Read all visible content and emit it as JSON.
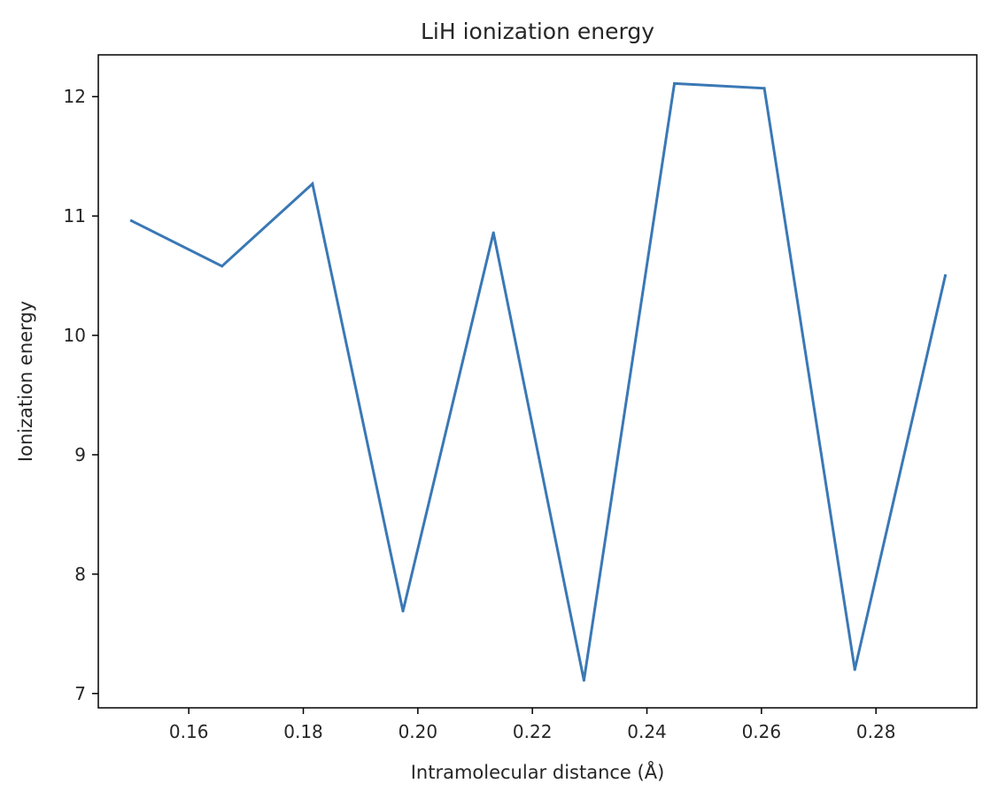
{
  "chart_data": {
    "type": "line",
    "title": "LiH ionization energy",
    "xlabel": "Intramolecular distance (Å)",
    "ylabel": "Ionization energy",
    "xlim": [
      0.1442,
      0.2976
    ],
    "ylim": [
      6.88,
      12.35
    ],
    "grid": false,
    "x_ticks": [
      "0.16",
      "0.18",
      "0.20",
      "0.22",
      "0.24",
      "0.26",
      "0.28"
    ],
    "y_ticks": [
      "7",
      "8",
      "9",
      "10",
      "11",
      "12"
    ],
    "series": [
      {
        "color": "#3a78b5",
        "x": [
          0.15,
          0.1658,
          0.1816,
          0.1974,
          0.2132,
          0.229,
          0.2448,
          0.2605,
          0.2763,
          0.2921
        ],
        "y": [
          10.96,
          10.58,
          11.27,
          7.69,
          10.86,
          7.11,
          12.11,
          12.07,
          7.2,
          10.5
        ]
      }
    ]
  }
}
